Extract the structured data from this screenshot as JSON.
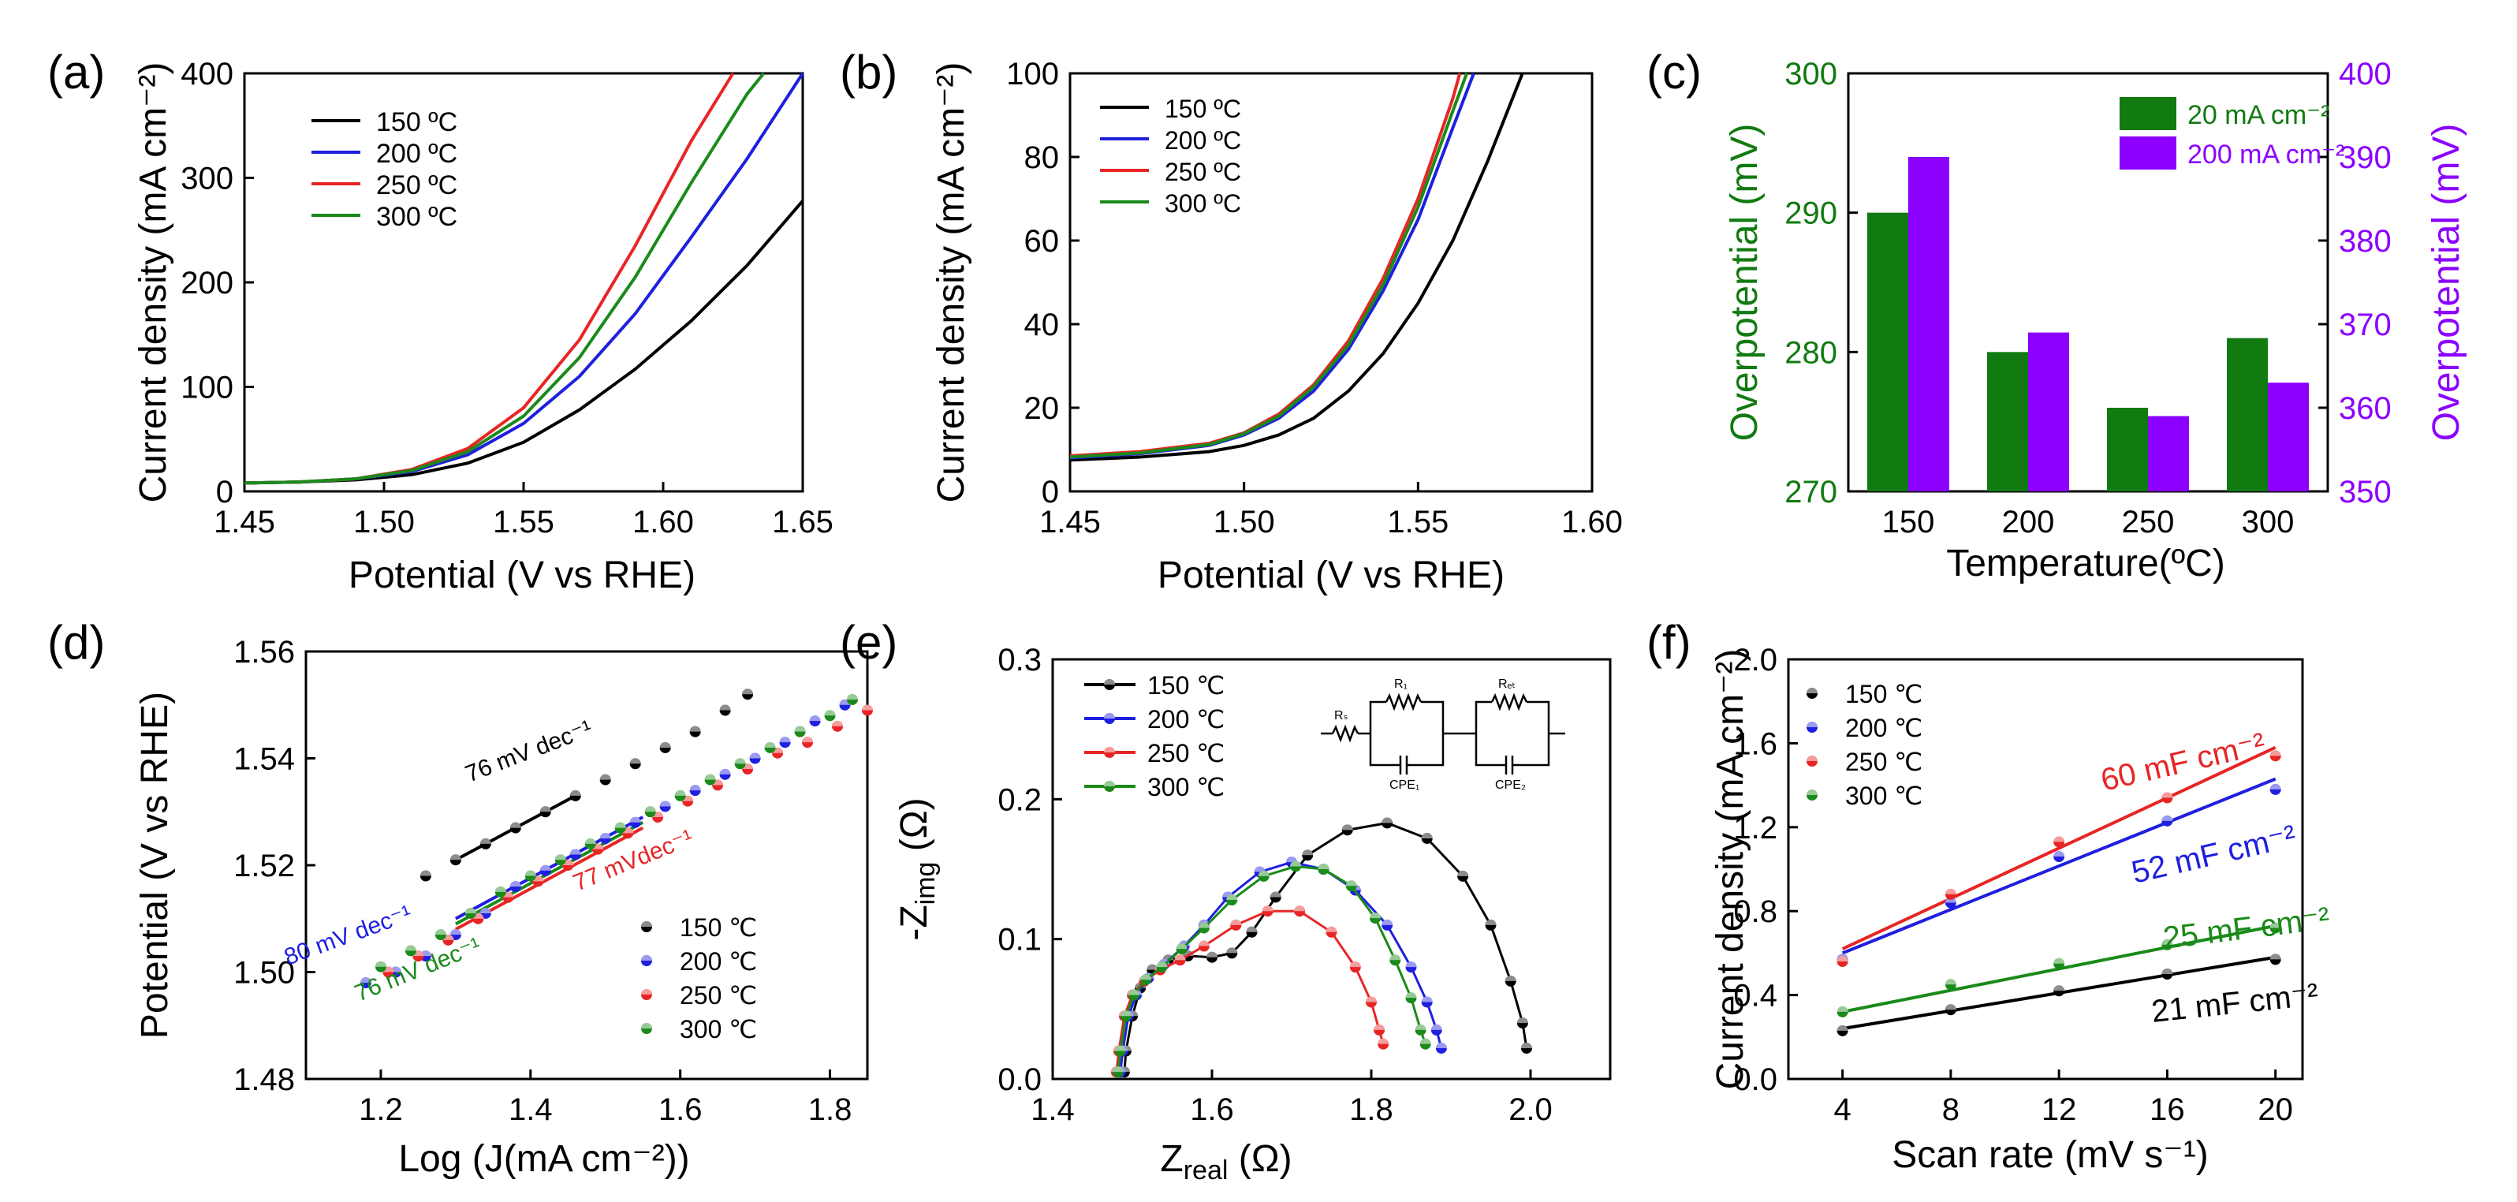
{
  "colors": {
    "c150": "#000000",
    "c200": "#1f1fe0",
    "c250": "#e82525",
    "c300": "#1a8a1a",
    "purple": "#8b00ff",
    "darkgreen": "#117a11"
  },
  "chart_data": [
    {
      "id": "a",
      "type": "line",
      "panel_label": "(a)",
      "xlabel": "Potential (V vs RHE)",
      "ylabel": "Current density (mA cm⁻²)",
      "xlim": [
        1.45,
        1.65
      ],
      "ylim": [
        0,
        400
      ],
      "xticks": [
        "1.45",
        "1.50",
        "1.55",
        "1.60",
        "1.65"
      ],
      "yticks": [
        "0",
        "100",
        "200",
        "300",
        "400"
      ],
      "legend": [
        "150 ºC",
        "200 ºC",
        "250 ºC",
        "300 ºC"
      ],
      "series": [
        {
          "name": "150 ºC",
          "x": [
            1.45,
            1.47,
            1.49,
            1.51,
            1.53,
            1.55,
            1.57,
            1.59,
            1.61,
            1.63,
            1.65
          ],
          "values": [
            8,
            9,
            11,
            16,
            27,
            47,
            78,
            117,
            163,
            216,
            278
          ]
        },
        {
          "name": "200 ºC",
          "x": [
            1.45,
            1.47,
            1.49,
            1.51,
            1.53,
            1.55,
            1.57,
            1.59,
            1.61,
            1.63,
            1.65
          ],
          "values": [
            8,
            9,
            12,
            19,
            35,
            65,
            110,
            170,
            243,
            318,
            400
          ]
        },
        {
          "name": "250 ºC",
          "x": [
            1.45,
            1.47,
            1.49,
            1.51,
            1.53,
            1.55,
            1.57,
            1.59,
            1.61,
            1.625
          ],
          "values": [
            8,
            9,
            12,
            21,
            41,
            80,
            145,
            235,
            335,
            400
          ]
        },
        {
          "name": "300 ºC",
          "x": [
            1.45,
            1.47,
            1.49,
            1.51,
            1.53,
            1.55,
            1.57,
            1.59,
            1.61,
            1.63,
            1.636
          ],
          "values": [
            8,
            9,
            12,
            20,
            38,
            72,
            128,
            205,
            295,
            380,
            400
          ]
        }
      ]
    },
    {
      "id": "b",
      "type": "line",
      "panel_label": "(b)",
      "xlabel": "Potential (V vs RHE)",
      "ylabel": "Current density (mA cm⁻²)",
      "xlim": [
        1.45,
        1.6
      ],
      "ylim": [
        0,
        100
      ],
      "xticks": [
        "1.45",
        "1.50",
        "1.55",
        "1.60"
      ],
      "yticks": [
        "0",
        "20",
        "40",
        "60",
        "80",
        "100"
      ],
      "legend": [
        "150 ºC",
        "200 ºC",
        "250 ºC",
        "300 ºC"
      ],
      "series": [
        {
          "name": "150 ºC",
          "x": [
            1.45,
            1.47,
            1.49,
            1.5,
            1.51,
            1.52,
            1.53,
            1.54,
            1.55,
            1.56,
            1.57,
            1.58
          ],
          "values": [
            7.5,
            8.2,
            9.5,
            11,
            13.5,
            17.5,
            24,
            33,
            45,
            60,
            79,
            100
          ]
        },
        {
          "name": "200 ºC",
          "x": [
            1.45,
            1.47,
            1.49,
            1.5,
            1.51,
            1.52,
            1.53,
            1.54,
            1.55,
            1.56,
            1.566
          ],
          "values": [
            8,
            9,
            11,
            13.5,
            17.5,
            24,
            34,
            48,
            65,
            87,
            100
          ]
        },
        {
          "name": "250 ºC",
          "x": [
            1.45,
            1.47,
            1.49,
            1.5,
            1.51,
            1.52,
            1.53,
            1.54,
            1.55,
            1.56,
            1.562
          ],
          "values": [
            8.5,
            9.5,
            11.5,
            14,
            18.5,
            25.5,
            36,
            51,
            70,
            94,
            100
          ]
        },
        {
          "name": "300 ºC",
          "x": [
            1.45,
            1.47,
            1.49,
            1.5,
            1.51,
            1.52,
            1.53,
            1.54,
            1.55,
            1.56,
            1.564
          ],
          "values": [
            8.2,
            9.2,
            11.2,
            13.8,
            18,
            25,
            35,
            49.5,
            68,
            91,
            100
          ]
        }
      ]
    },
    {
      "id": "c",
      "type": "bar",
      "panel_label": "(c)",
      "xlabel": "Temperature(ºC)",
      "ylabel_left": "Overpotential (mV)",
      "ylabel_right": "Overpotential (mV)",
      "categories": [
        "150",
        "200",
        "250",
        "300"
      ],
      "ylim_left": [
        270,
        300
      ],
      "ylim_right": [
        350,
        400
      ],
      "yticks_left": [
        "270",
        "280",
        "290",
        "300"
      ],
      "yticks_right": [
        "350",
        "360",
        "370",
        "380",
        "390",
        "400"
      ],
      "legend": [
        "20 mA cm⁻²",
        "200 mA cm⁻²"
      ],
      "series": [
        {
          "name": "20 mA cm⁻²",
          "axis": "left",
          "values": [
            290,
            280,
            276,
            281
          ]
        },
        {
          "name": "200 mA cm⁻²",
          "axis": "right",
          "values": [
            390,
            369,
            359,
            363
          ]
        }
      ]
    },
    {
      "id": "d",
      "type": "scatter",
      "panel_label": "(d)",
      "xlabel": "Log (J(mA cm⁻²))",
      "ylabel": "Potential (V vs RHE)",
      "xlim": [
        1.1,
        1.85
      ],
      "ylim": [
        1.48,
        1.56
      ],
      "xticks": [
        "1.2",
        "1.4",
        "1.6",
        "1.8"
      ],
      "yticks": [
        "1.48",
        "1.50",
        "1.52",
        "1.54",
        "1.56"
      ],
      "legend": [
        "150 ℃",
        "200 ℃",
        "250 ℃",
        "300 ℃"
      ],
      "annotations": [
        "76 mV dec⁻¹",
        "77 mVdec⁻¹",
        "80 mV dec⁻¹",
        "76 mV dec⁻¹"
      ],
      "series": [
        {
          "name": "150 ℃",
          "x": [
            1.26,
            1.3,
            1.34,
            1.38,
            1.42,
            1.46,
            1.5,
            1.54,
            1.58,
            1.62,
            1.66,
            1.69
          ],
          "values": [
            1.518,
            1.521,
            1.524,
            1.527,
            1.53,
            1.533,
            1.536,
            1.539,
            1.542,
            1.545,
            1.549,
            1.552
          ]
        },
        {
          "name": "200 ℃",
          "x": [
            1.18,
            1.22,
            1.26,
            1.3,
            1.34,
            1.38,
            1.42,
            1.46,
            1.5,
            1.54,
            1.58,
            1.62,
            1.66,
            1.7,
            1.74,
            1.78,
            1.82
          ],
          "values": [
            1.498,
            1.5,
            1.503,
            1.507,
            1.511,
            1.516,
            1.519,
            1.522,
            1.525,
            1.528,
            1.531,
            1.534,
            1.537,
            1.54,
            1.543,
            1.547,
            1.55
          ]
        },
        {
          "name": "250 ℃",
          "x": [
            1.21,
            1.25,
            1.29,
            1.33,
            1.37,
            1.41,
            1.45,
            1.49,
            1.53,
            1.57,
            1.61,
            1.65,
            1.69,
            1.73,
            1.77,
            1.81,
            1.85
          ],
          "values": [
            1.5,
            1.503,
            1.506,
            1.51,
            1.514,
            1.517,
            1.52,
            1.523,
            1.526,
            1.529,
            1.532,
            1.535,
            1.538,
            1.541,
            1.543,
            1.546,
            1.549
          ]
        },
        {
          "name": "300 ℃",
          "x": [
            1.2,
            1.24,
            1.28,
            1.32,
            1.36,
            1.4,
            1.44,
            1.48,
            1.52,
            1.56,
            1.6,
            1.64,
            1.68,
            1.72,
            1.76,
            1.8,
            1.83
          ],
          "values": [
            1.501,
            1.504,
            1.507,
            1.511,
            1.515,
            1.518,
            1.521,
            1.524,
            1.527,
            1.53,
            1.533,
            1.536,
            1.539,
            1.542,
            1.545,
            1.548,
            1.551
          ]
        }
      ],
      "fits": [
        {
          "series": "150 ℃",
          "x": [
            1.3,
            1.46
          ],
          "values": [
            1.521,
            1.533
          ]
        },
        {
          "series": "200 ℃",
          "x": [
            1.3,
            1.55
          ],
          "values": [
            1.51,
            1.529
          ]
        },
        {
          "series": "250 ℃",
          "x": [
            1.3,
            1.55
          ],
          "values": [
            1.508,
            1.527
          ]
        },
        {
          "series": "300 ℃",
          "x": [
            1.3,
            1.55
          ],
          "values": [
            1.509,
            1.528
          ]
        }
      ]
    },
    {
      "id": "e",
      "type": "scatter",
      "panel_label": "(e)",
      "xlabel": "Zᵣₑₐₗ (Ω)",
      "ylabel": "-Zᵢₘ₉ (Ω)",
      "xlabel_main": "Z",
      "xlabel_sub": "real",
      "xlabel_unit": " (Ω)",
      "ylabel_main": "-Z",
      "ylabel_sub": "img",
      "ylabel_unit": " (Ω)",
      "xlim": [
        1.4,
        2.1
      ],
      "ylim": [
        0,
        0.3
      ],
      "xticks": [
        "1.4",
        "1.6",
        "1.8",
        "2.0"
      ],
      "yticks": [
        "0.0",
        "0.1",
        "0.2",
        "0.3"
      ],
      "legend": [
        "150 ℃",
        "200 ℃",
        "250 ℃",
        "300 ℃"
      ],
      "circuit_labels": [
        "Rₛ",
        "R₁",
        "Rₑₜ",
        "CPE₁",
        "CPE₂"
      ],
      "series": [
        {
          "name": "150 ℃",
          "x": [
            1.49,
            1.492,
            1.5,
            1.51,
            1.525,
            1.545,
            1.57,
            1.6,
            1.625,
            1.65,
            1.68,
            1.72,
            1.77,
            1.82,
            1.87,
            1.915,
            1.95,
            1.975,
            1.99,
            1.995
          ],
          "values": [
            0.005,
            0.02,
            0.045,
            0.065,
            0.078,
            0.085,
            0.088,
            0.087,
            0.09,
            0.105,
            0.13,
            0.16,
            0.178,
            0.183,
            0.172,
            0.145,
            0.11,
            0.07,
            0.04,
            0.022
          ]
        },
        {
          "name": "200 ℃",
          "x": [
            1.485,
            1.488,
            1.495,
            1.505,
            1.52,
            1.54,
            1.565,
            1.59,
            1.62,
            1.66,
            1.7,
            1.74,
            1.78,
            1.82,
            1.85,
            1.87,
            1.882,
            1.888
          ],
          "values": [
            0.005,
            0.02,
            0.045,
            0.06,
            0.072,
            0.082,
            0.095,
            0.11,
            0.13,
            0.148,
            0.155,
            0.15,
            0.135,
            0.11,
            0.08,
            0.055,
            0.035,
            0.022
          ]
        },
        {
          "name": "250 ℃",
          "x": [
            1.48,
            1.483,
            1.49,
            1.5,
            1.515,
            1.535,
            1.56,
            1.59,
            1.63,
            1.67,
            1.71,
            1.75,
            1.78,
            1.8,
            1.81,
            1.815
          ],
          "values": [
            0.005,
            0.02,
            0.045,
            0.06,
            0.07,
            0.078,
            0.085,
            0.095,
            0.11,
            0.12,
            0.12,
            0.105,
            0.08,
            0.055,
            0.035,
            0.025
          ]
        },
        {
          "name": "300 ℃",
          "x": [
            1.482,
            1.485,
            1.492,
            1.502,
            1.517,
            1.537,
            1.562,
            1.59,
            1.625,
            1.665,
            1.705,
            1.74,
            1.775,
            1.805,
            1.83,
            1.85,
            1.862,
            1.868
          ],
          "values": [
            0.005,
            0.02,
            0.045,
            0.06,
            0.071,
            0.08,
            0.093,
            0.108,
            0.128,
            0.145,
            0.152,
            0.15,
            0.138,
            0.115,
            0.085,
            0.058,
            0.035,
            0.025
          ]
        }
      ]
    },
    {
      "id": "f",
      "type": "scatter",
      "panel_label": "(f)",
      "xlabel": "Scan rate (mV s⁻¹)",
      "ylabel": "Current density (mA cm⁻²)",
      "xlim": [
        2,
        21
      ],
      "ylim": [
        0,
        2
      ],
      "xticks": [
        "4",
        "8",
        "12",
        "16",
        "20"
      ],
      "yticks": [
        "0.0",
        "0.4",
        "0.8",
        "1.2",
        "1.6",
        "2.0"
      ],
      "legend": [
        "150 ℃",
        "200 ℃",
        "250 ℃",
        "300 ℃"
      ],
      "annotations": [
        "60 mF cm⁻²",
        "52 mF cm⁻²",
        "25 mF cm⁻²",
        "21 mF cm⁻²"
      ],
      "series": [
        {
          "name": "150 ℃",
          "x": [
            4,
            8,
            12,
            16,
            20
          ],
          "values": [
            0.23,
            0.33,
            0.42,
            0.5,
            0.57
          ]
        },
        {
          "name": "200 ℃",
          "x": [
            4,
            8,
            12,
            16,
            20
          ],
          "values": [
            0.57,
            0.84,
            1.06,
            1.23,
            1.38
          ]
        },
        {
          "name": "250 ℃",
          "x": [
            4,
            8,
            12,
            16,
            20
          ],
          "values": [
            0.56,
            0.88,
            1.13,
            1.34,
            1.54
          ]
        },
        {
          "name": "300 ℃",
          "x": [
            4,
            8,
            12,
            16,
            20
          ],
          "values": [
            0.32,
            0.45,
            0.55,
            0.64,
            0.72
          ]
        }
      ],
      "fits": [
        {
          "series": "150 ℃",
          "x": [
            4,
            20
          ],
          "values": [
            0.24,
            0.58
          ]
        },
        {
          "series": "200 ℃",
          "x": [
            4,
            20
          ],
          "values": [
            0.6,
            1.43
          ]
        },
        {
          "series": "250 ℃",
          "x": [
            4,
            20
          ],
          "values": [
            0.62,
            1.58
          ]
        },
        {
          "series": "300 ℃",
          "x": [
            4,
            20
          ],
          "values": [
            0.32,
            0.73
          ]
        }
      ]
    }
  ]
}
